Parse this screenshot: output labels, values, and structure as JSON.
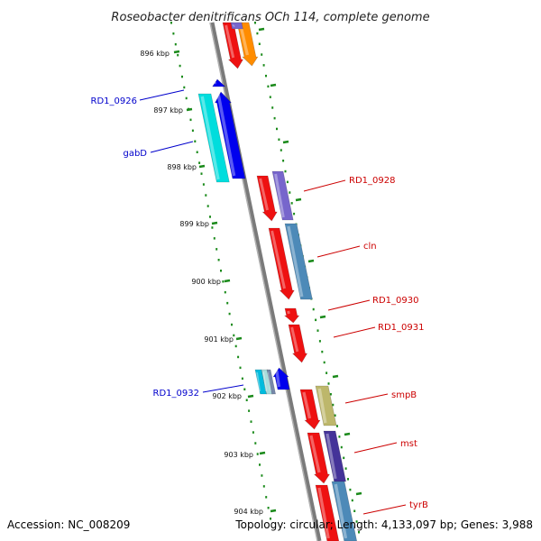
{
  "title": "Roseobacter denitrificans OCh 114, complete genome",
  "footer": {
    "accession": "Accession: NC_008209",
    "summary": "Topology: circular; Length: 4,133,097 bp; Genes: 3,988"
  },
  "colors": {
    "backbone": "#808080",
    "tick_green": "#1a8a1a",
    "left_label": "#0000cc",
    "right_label": "#cc0000"
  },
  "kbp_ticks": [
    "896 kbp",
    "897 kbp",
    "898 kbp",
    "899 kbp",
    "900 kbp",
    "901 kbp",
    "902 kbp",
    "903 kbp",
    "904 kbp"
  ],
  "gene_labels_left": [
    "RD1_0926",
    "gabD",
    "RD1_0932"
  ],
  "gene_labels_right": [
    "RD1_0928",
    "cln",
    "RD1_0930",
    "RD1_0931",
    "smpB",
    "mst",
    "tyrB"
  ]
}
